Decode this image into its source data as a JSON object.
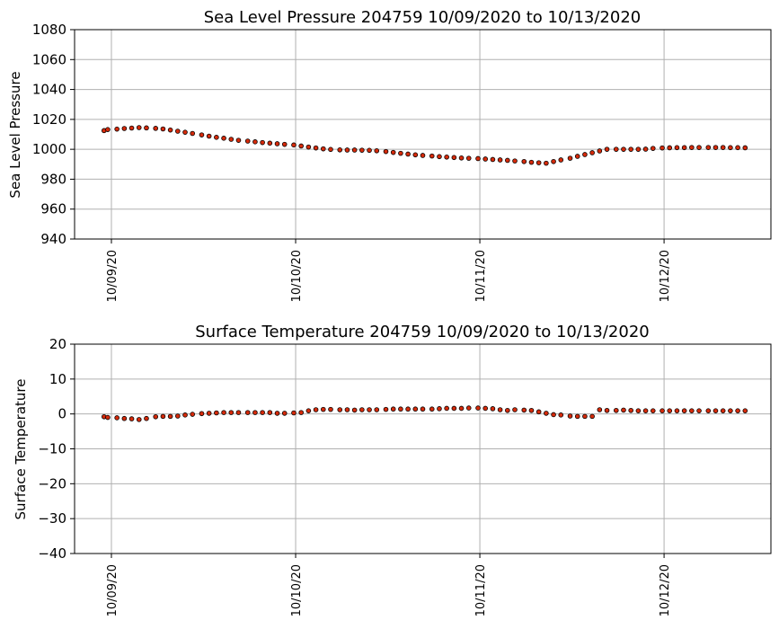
{
  "colors": {
    "marker": "#d62a0a",
    "grid": "#b0b0b0"
  },
  "chart_data": [
    {
      "type": "scatter",
      "title": "Sea Level Pressure 204759  10/09/2020 to 10/13/2020",
      "ylabel": "Sea Level Pressure",
      "xlabel": "",
      "ylim": [
        940,
        1080
      ],
      "yticks": [
        "940",
        "960",
        "980",
        "1000",
        "1020",
        "1040",
        "1060",
        "1080"
      ],
      "xlim_days": [
        -0.2,
        3.58
      ],
      "xticks": [
        {
          "label": "10/09/20",
          "day": 0
        },
        {
          "label": "10/10/20",
          "day": 1
        },
        {
          "label": "10/11/20",
          "day": 2
        },
        {
          "label": "10/12/20",
          "day": 3
        }
      ],
      "grid": true,
      "x_days": [
        -0.04,
        -0.02,
        0.03,
        0.07,
        0.11,
        0.15,
        0.19,
        0.24,
        0.28,
        0.32,
        0.36,
        0.4,
        0.44,
        0.49,
        0.53,
        0.57,
        0.61,
        0.65,
        0.69,
        0.74,
        0.78,
        0.82,
        0.86,
        0.9,
        0.94,
        0.99,
        1.03,
        1.07,
        1.11,
        1.15,
        1.19,
        1.24,
        1.28,
        1.32,
        1.36,
        1.4,
        1.44,
        1.49,
        1.53,
        1.57,
        1.61,
        1.65,
        1.69,
        1.74,
        1.78,
        1.82,
        1.86,
        1.9,
        1.94,
        1.99,
        2.03,
        2.07,
        2.11,
        2.15,
        2.19,
        2.24,
        2.28,
        2.32,
        2.36,
        2.4,
        2.44,
        2.49,
        2.53,
        2.57,
        2.61,
        2.65,
        2.69,
        2.74,
        2.78,
        2.82,
        2.86,
        2.9,
        2.94,
        2.99,
        3.03,
        3.07,
        3.11,
        3.15,
        3.19,
        3.24,
        3.28,
        3.32,
        3.36,
        3.4,
        3.44
      ],
      "values": [
        1012.5,
        1013.2,
        1013.5,
        1013.9,
        1014.2,
        1014.5,
        1014.3,
        1014.0,
        1013.6,
        1012.9,
        1012.1,
        1011.4,
        1010.6,
        1009.6,
        1008.8,
        1008.0,
        1007.4,
        1006.7,
        1006.0,
        1005.5,
        1005.0,
        1004.5,
        1004.1,
        1003.7,
        1003.3,
        1002.9,
        1002.2,
        1001.5,
        1000.9,
        1000.3,
        999.9,
        999.6,
        999.5,
        999.5,
        999.4,
        999.3,
        999.0,
        998.5,
        997.9,
        997.3,
        996.8,
        996.3,
        995.9,
        995.5,
        995.1,
        994.8,
        994.5,
        994.2,
        994.0,
        993.8,
        993.5,
        993.2,
        992.9,
        992.6,
        992.2,
        991.8,
        991.3,
        991.0,
        990.7,
        991.8,
        992.9,
        994.0,
        995.3,
        996.5,
        997.7,
        998.9,
        1000.0,
        1000.0,
        1000.0,
        1000.0,
        1000.0,
        1000.1,
        1000.6,
        1000.9,
        1001.0,
        1001.1,
        1001.1,
        1001.2,
        1001.2,
        1001.2,
        1001.2,
        1001.2,
        1001.1,
        1001.1,
        1001.0
      ]
    },
    {
      "type": "scatter",
      "title": "Surface Temperature 204759  10/09/2020 to 10/13/2020",
      "ylabel": "Surface Temperature",
      "xlabel": "",
      "ylim": [
        -40,
        20
      ],
      "yticks": [
        "−40",
        "−30",
        "−20",
        "−10",
        "0",
        "10",
        "20"
      ],
      "xlim_days": [
        -0.2,
        3.58
      ],
      "xticks": [
        {
          "label": "10/09/20",
          "day": 0
        },
        {
          "label": "10/10/20",
          "day": 1
        },
        {
          "label": "10/11/20",
          "day": 2
        },
        {
          "label": "10/12/20",
          "day": 3
        }
      ],
      "grid": true,
      "x_days": [
        -0.04,
        -0.02,
        0.03,
        0.07,
        0.11,
        0.15,
        0.19,
        0.24,
        0.28,
        0.32,
        0.36,
        0.4,
        0.44,
        0.49,
        0.53,
        0.57,
        0.61,
        0.65,
        0.69,
        0.74,
        0.78,
        0.82,
        0.86,
        0.9,
        0.94,
        0.99,
        1.03,
        1.07,
        1.11,
        1.15,
        1.19,
        1.24,
        1.28,
        1.32,
        1.36,
        1.4,
        1.44,
        1.49,
        1.53,
        1.57,
        1.61,
        1.65,
        1.69,
        1.74,
        1.78,
        1.82,
        1.86,
        1.9,
        1.94,
        1.99,
        2.03,
        2.07,
        2.11,
        2.15,
        2.19,
        2.24,
        2.28,
        2.32,
        2.36,
        2.4,
        2.44,
        2.49,
        2.53,
        2.57,
        2.61,
        2.65,
        2.69,
        2.74,
        2.78,
        2.82,
        2.86,
        2.9,
        2.94,
        2.99,
        3.03,
        3.07,
        3.11,
        3.15,
        3.19,
        3.24,
        3.28,
        3.32,
        3.36,
        3.4,
        3.44
      ],
      "values": [
        -0.8,
        -1.0,
        -1.1,
        -1.3,
        -1.4,
        -1.6,
        -1.3,
        -0.8,
        -0.7,
        -0.7,
        -0.6,
        -0.3,
        -0.1,
        0.1,
        0.2,
        0.3,
        0.4,
        0.4,
        0.4,
        0.4,
        0.4,
        0.4,
        0.4,
        0.2,
        0.2,
        0.3,
        0.4,
        0.9,
        1.2,
        1.3,
        1.3,
        1.2,
        1.2,
        1.1,
        1.2,
        1.2,
        1.2,
        1.3,
        1.4,
        1.4,
        1.4,
        1.4,
        1.4,
        1.4,
        1.5,
        1.6,
        1.6,
        1.6,
        1.7,
        1.7,
        1.6,
        1.5,
        1.2,
        1.0,
        1.2,
        1.1,
        1.0,
        0.6,
        0.2,
        -0.2,
        -0.3,
        -0.6,
        -0.7,
        -0.7,
        -0.7,
        1.2,
        1.0,
        1.0,
        1.1,
        1.0,
        0.9,
        0.9,
        0.9,
        0.9,
        0.9,
        0.9,
        0.9,
        0.9,
        0.9,
        0.9,
        0.9,
        0.9,
        0.9,
        0.9,
        0.9
      ]
    }
  ]
}
